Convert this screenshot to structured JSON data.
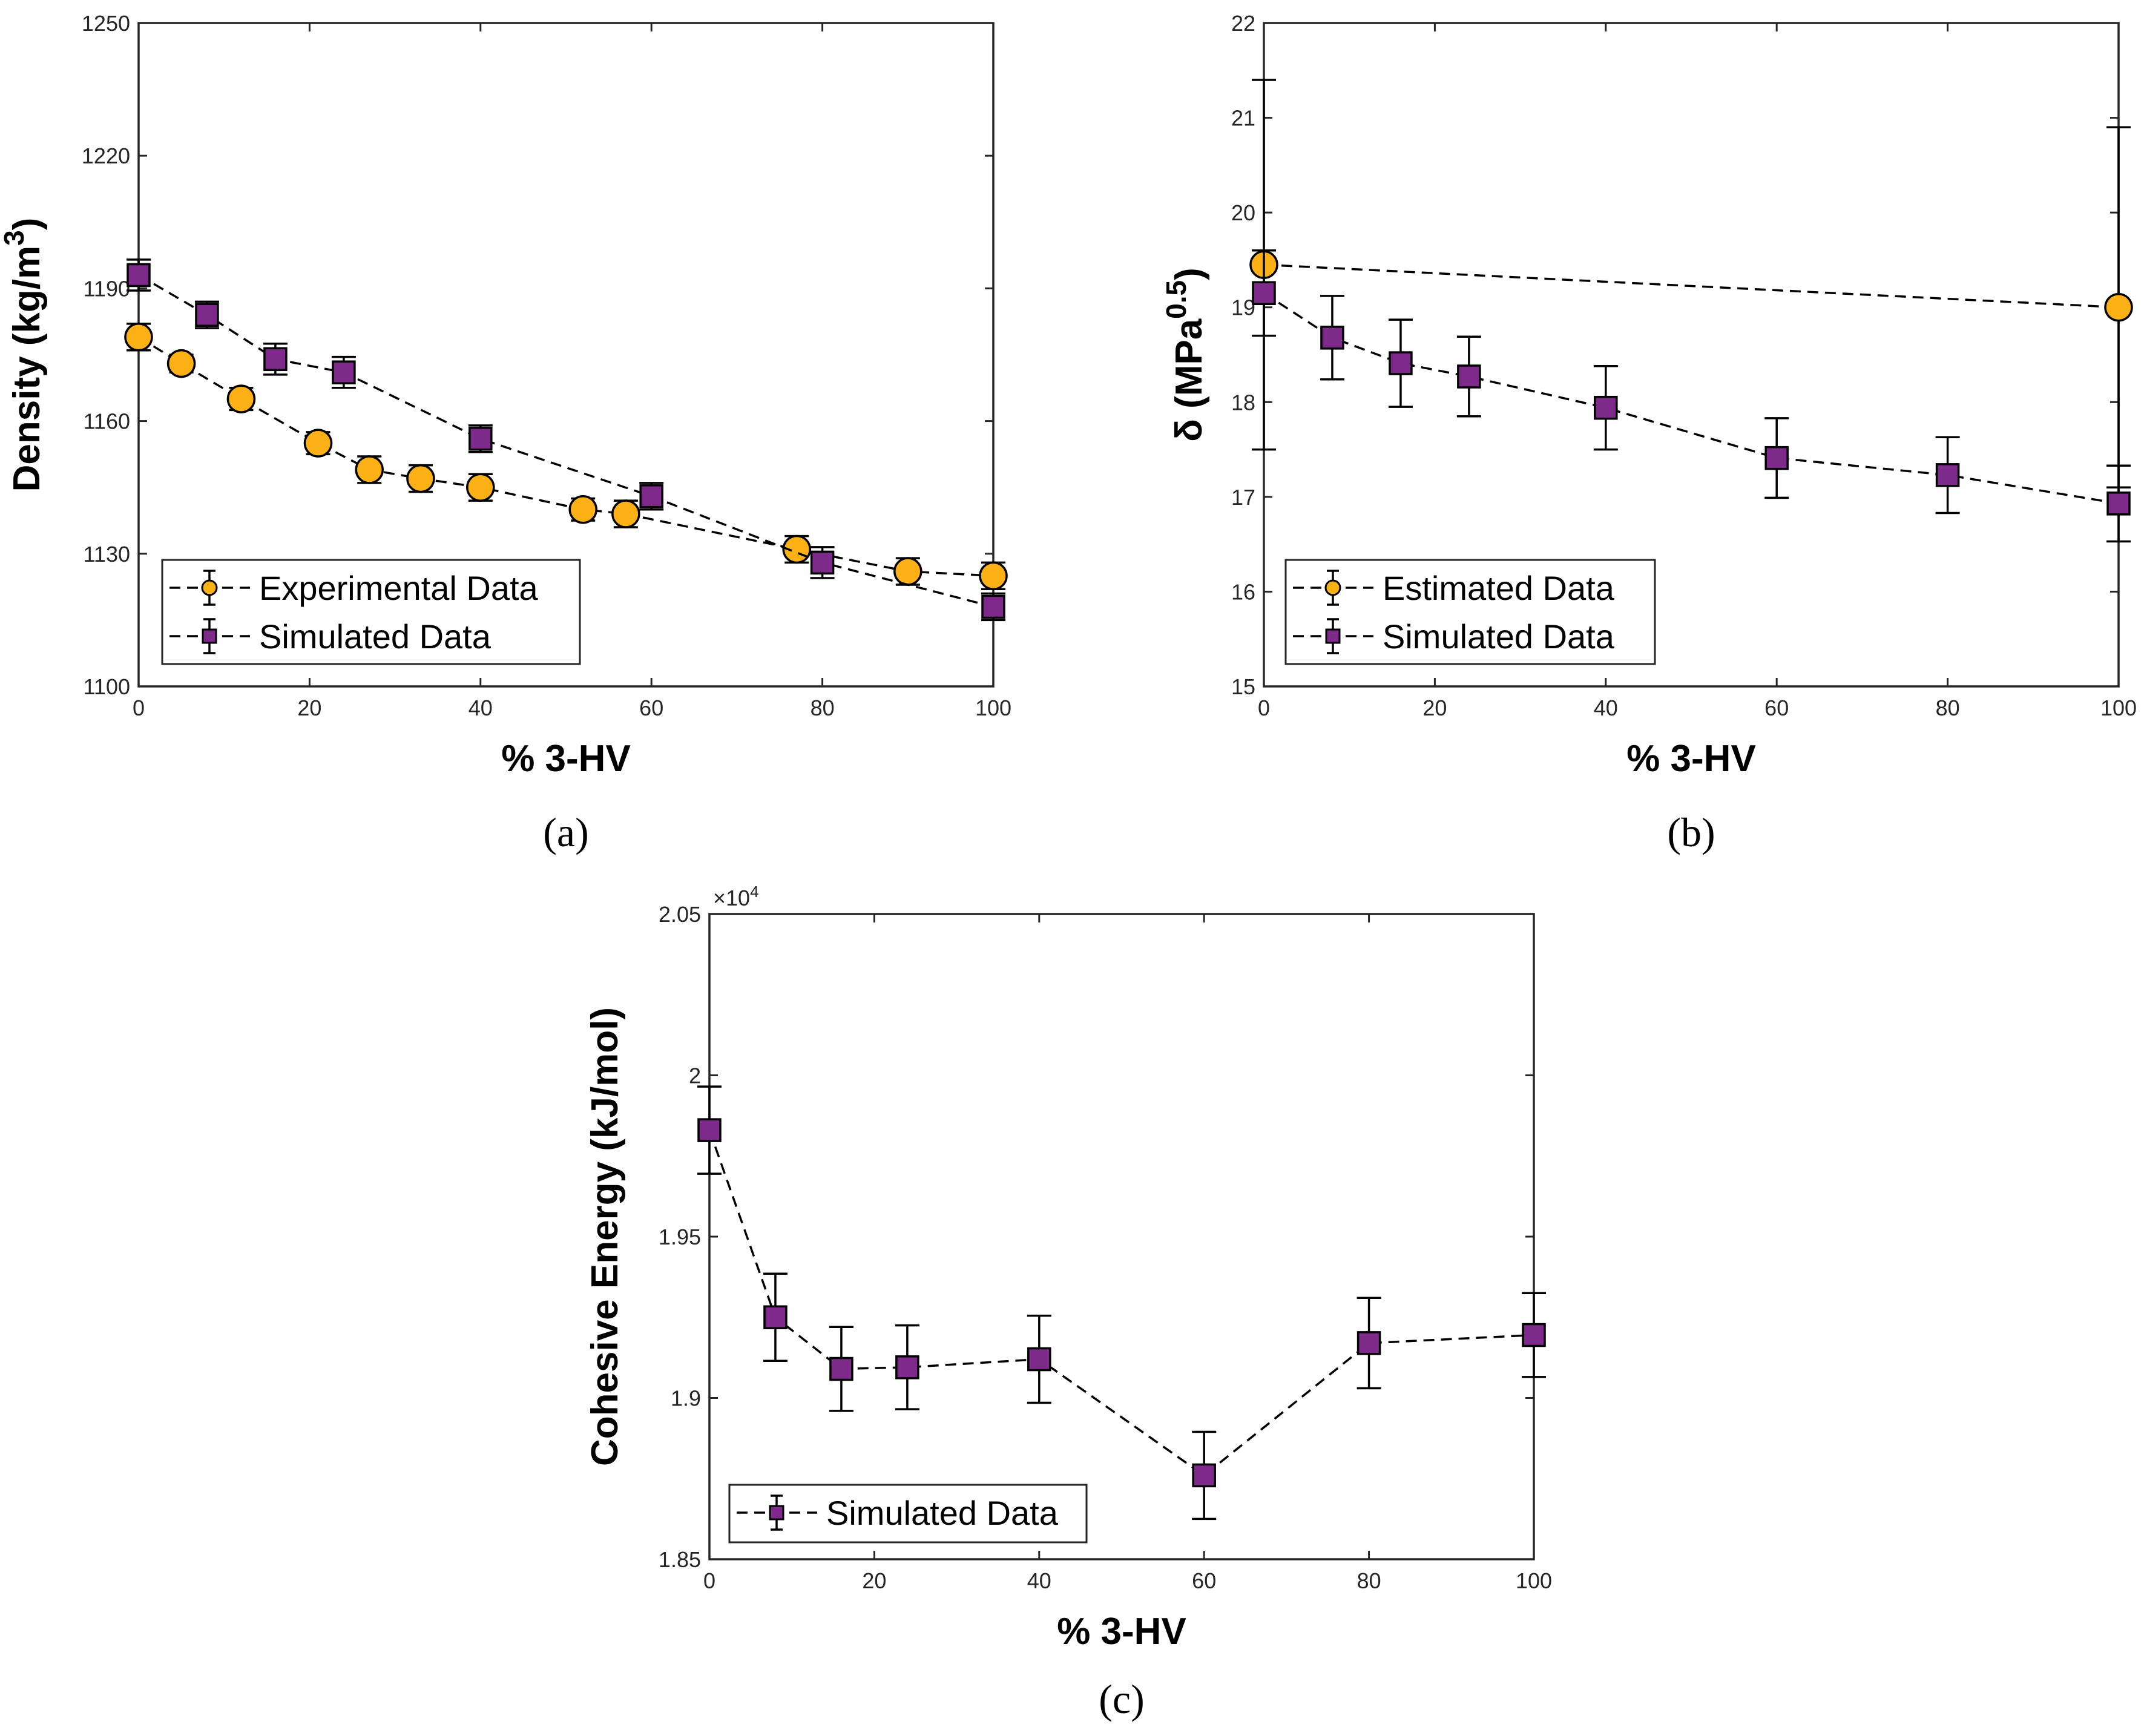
{
  "chart_data": [
    {
      "id": "a",
      "type": "scatter",
      "panel_label": "(a)",
      "xlabel": "% 3-HV",
      "ylabel": "Density (kg/m",
      "ylabel_sup": "3",
      "ylabel_close": ")",
      "xlim": [
        0,
        100
      ],
      "ylim": [
        1100,
        1250
      ],
      "xticks": [
        0,
        20,
        40,
        60,
        80,
        100
      ],
      "yticks": [
        1100,
        1130,
        1160,
        1190,
        1220,
        1250
      ],
      "legend_position": "bottom-left",
      "series": [
        {
          "name": "Experimental Data",
          "marker": "circle",
          "color": "#FBB016",
          "x": [
            0,
            5,
            12,
            21,
            27,
            33,
            40,
            52,
            57,
            77,
            90,
            100
          ],
          "y": [
            1179,
            1173,
            1165,
            1155,
            1149,
            1147,
            1145,
            1140,
            1139,
            1131,
            1126,
            1125
          ],
          "err": [
            3,
            2,
            2.5,
            2.5,
            3,
            3,
            3,
            2.5,
            3,
            3,
            3,
            3
          ]
        },
        {
          "name": "Simulated Data",
          "marker": "square",
          "color": "#7E2A8A",
          "x": [
            0,
            8,
            16,
            24,
            40,
            60,
            80,
            100
          ],
          "y": [
            1193,
            1184,
            1174,
            1171,
            1156,
            1143,
            1128,
            1118
          ],
          "err": [
            3.5,
            3,
            3.5,
            3.5,
            3,
            3,
            3.5,
            3
          ]
        }
      ]
    },
    {
      "id": "b",
      "type": "scatter",
      "panel_label": "(b)",
      "xlabel": "% 3-HV",
      "ylabel": "δ (MPa",
      "ylabel_sup": "0.5",
      "ylabel_close": ")",
      "xlim": [
        0,
        100
      ],
      "ylim": [
        15,
        22
      ],
      "xticks": [
        0,
        20,
        40,
        60,
        80,
        100
      ],
      "yticks": [
        15,
        16,
        17,
        18,
        19,
        20,
        21,
        22
      ],
      "legend_position": "bottom-left",
      "series": [
        {
          "name": "Estimated Data",
          "marker": "circle",
          "color": "#FBB016",
          "x": [
            0,
            100
          ],
          "y": [
            19.45,
            19.0
          ],
          "err": [
            1.95,
            1.9
          ]
        },
        {
          "name": "Simulated Data",
          "marker": "square",
          "color": "#7E2A8A",
          "x": [
            0,
            8,
            16,
            24,
            40,
            60,
            80,
            100
          ],
          "y": [
            19.15,
            18.68,
            18.41,
            18.27,
            17.94,
            17.41,
            17.23,
            16.93
          ],
          "err": [
            0.45,
            0.44,
            0.46,
            0.42,
            0.44,
            0.42,
            0.4,
            0.4
          ]
        }
      ]
    },
    {
      "id": "c",
      "type": "scatter",
      "panel_label": "(c)",
      "xlabel": "% 3-HV",
      "ylabel": "Cohesive Energy (kJ/mol)",
      "ylabel_sup": "",
      "ylabel_close": "",
      "exponent_label": "×10",
      "exponent_sup": "4",
      "xlim": [
        0,
        100
      ],
      "ylim": [
        1.85,
        2.05
      ],
      "xticks": [
        0,
        20,
        40,
        60,
        80,
        100
      ],
      "yticks": [
        1.85,
        1.9,
        1.95,
        2,
        2.05
      ],
      "ytick_labels": [
        "1.85",
        "1.9",
        "1.95",
        "2",
        "2.05"
      ],
      "legend_position": "bottom-left",
      "series": [
        {
          "name": "Simulated Data",
          "marker": "square",
          "color": "#7E2A8A",
          "x": [
            0,
            8,
            16,
            24,
            40,
            60,
            80,
            100
          ],
          "y": [
            1.983,
            1.925,
            1.909,
            1.9095,
            1.912,
            1.876,
            1.917,
            1.9195
          ],
          "err": [
            0.0135,
            0.0135,
            0.013,
            0.013,
            0.0135,
            0.0135,
            0.014,
            0.013
          ]
        }
      ]
    }
  ]
}
